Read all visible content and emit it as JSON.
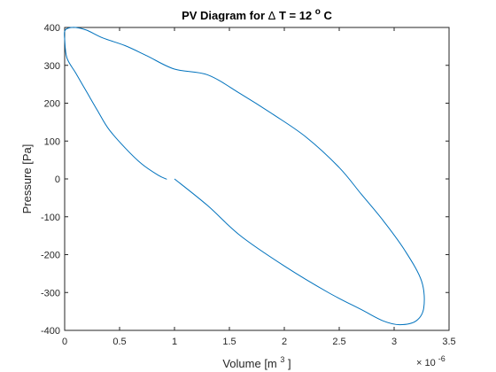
{
  "chart_data": {
    "type": "line",
    "title": {
      "prefix": "PV Diagram for ",
      "delta": "Δ",
      "mid": " T = 12 ",
      "degree": "o",
      "suffix": "C"
    },
    "xlabel": {
      "main": "Volume [m",
      "sup": "3",
      "end": "]"
    },
    "ylabel": "Pressure [Pa]",
    "x_exponent": {
      "base": "× 10",
      "power": "-6"
    },
    "x_ticks": [
      "0",
      "0.5",
      "1",
      "1.5",
      "2",
      "2.5",
      "3",
      "3.5"
    ],
    "y_ticks": [
      "-400",
      "-300",
      "-200",
      "-100",
      "0",
      "100",
      "200",
      "300",
      "400"
    ],
    "xlim": [
      0,
      3.5
    ],
    "ylim": [
      -400,
      400
    ],
    "x_unit_scale": 1e-06,
    "grid": false,
    "line_color": "#0072BD",
    "series": [
      {
        "x": [
          1.0,
          1.3,
          1.6,
          2.0,
          2.4,
          2.7,
          2.9,
          3.05,
          3.2,
          3.27,
          3.25,
          3.1,
          2.9,
          2.7,
          2.5,
          2.2,
          1.9,
          1.6,
          1.3,
          1.0,
          0.75,
          0.55,
          0.35,
          0.2,
          0.1,
          0.03,
          0.0,
          0.0,
          0.02,
          0.1,
          0.2,
          0.3,
          0.4,
          0.55,
          0.7,
          0.85,
          0.93
        ],
        "y": [
          0,
          -70,
          -150,
          -230,
          -300,
          -345,
          -375,
          -385,
          -375,
          -340,
          -270,
          -190,
          -110,
          -40,
          30,
          110,
          170,
          225,
          275,
          290,
          325,
          352,
          372,
          393,
          400,
          398,
          390,
          370,
          320,
          280,
          230,
          180,
          132,
          82,
          40,
          10,
          -1
        ]
      }
    ]
  }
}
